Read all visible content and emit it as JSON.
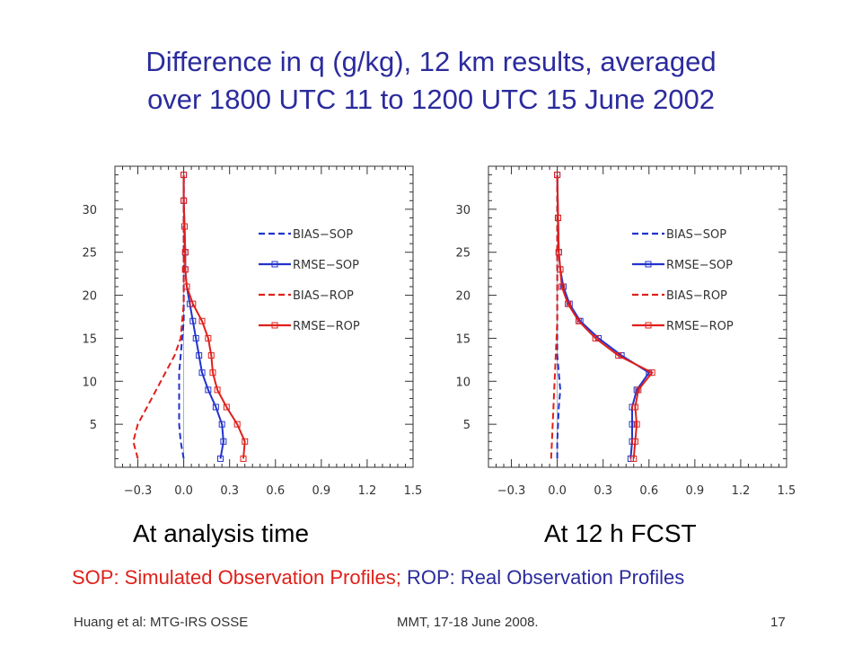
{
  "slide": {
    "title_line1": "Difference in q (g/kg), 12 km results, averaged",
    "title_line2": "over 1800 UTC 11 to 1200 UTC 15 June 2002",
    "caption_left": "At analysis time",
    "caption_right": "At 12 h FCST",
    "note_sop": "SOP: Simulated Observation Profiles;",
    "note_rop": "ROP: Real Observation Profiles",
    "footer_left": "Huang et al: MTG-IRS OSSE",
    "footer_center": "MMT, 17-18 June 2008.",
    "footer_right": "17",
    "colors": {
      "title": "#2b2b9e",
      "sop": "#2233cc",
      "rop": "#e0201a"
    }
  },
  "chart_data": [
    {
      "type": "line",
      "title": "At analysis time",
      "xlim": [
        -0.45,
        1.5
      ],
      "ylim": [
        0,
        35
      ],
      "xticks": [
        "−0.3",
        "0.0",
        "0.3",
        "0.6",
        "0.9",
        "1.2",
        "1.5"
      ],
      "xtick_values": [
        -0.3,
        0.0,
        0.3,
        0.6,
        0.9,
        1.2,
        1.5
      ],
      "yticks": [
        "5",
        "10",
        "15",
        "20",
        "25",
        "30"
      ],
      "ytick_values": [
        5,
        10,
        15,
        20,
        25,
        30
      ],
      "legend": "top-right",
      "series": [
        {
          "name": "BIAS−SOP",
          "color": "#2233cc",
          "style": "dashed",
          "marker": "none",
          "x": [
            0.0,
            -0.02,
            -0.03,
            -0.03,
            -0.03,
            -0.03,
            -0.02,
            -0.01,
            0.0,
            0.0,
            0.0,
            0.0,
            0.0,
            0.0,
            0.0,
            0.0
          ],
          "y": [
            1,
            3,
            5,
            7,
            9,
            11,
            13,
            15,
            17,
            19,
            21,
            23,
            25,
            28,
            31,
            34
          ]
        },
        {
          "name": "RMSE−SOP",
          "color": "#2233cc",
          "style": "solid",
          "marker": "square",
          "x": [
            0.24,
            0.26,
            0.25,
            0.21,
            0.16,
            0.12,
            0.1,
            0.08,
            0.06,
            0.04,
            0.02,
            0.01,
            0.01,
            0.005,
            0.0,
            0.0
          ],
          "y": [
            1,
            3,
            5,
            7,
            9,
            11,
            13,
            15,
            17,
            19,
            21,
            23,
            25,
            28,
            31,
            34
          ]
        },
        {
          "name": "BIAS−ROP",
          "color": "#e0201a",
          "style": "dashed",
          "marker": "none",
          "x": [
            -0.3,
            -0.33,
            -0.3,
            -0.24,
            -0.18,
            -0.12,
            -0.06,
            -0.02,
            -0.01,
            0.0,
            0.0,
            0.0,
            0.0,
            0.0,
            0.0,
            0.0
          ],
          "y": [
            1,
            3,
            5,
            7,
            9,
            11,
            13,
            15,
            17,
            19,
            21,
            23,
            25,
            28,
            31,
            34
          ]
        },
        {
          "name": "RMSE−ROP",
          "color": "#e0201a",
          "style": "solid",
          "marker": "square",
          "x": [
            0.39,
            0.4,
            0.35,
            0.28,
            0.22,
            0.19,
            0.18,
            0.16,
            0.12,
            0.06,
            0.02,
            0.01,
            0.01,
            0.005,
            0.0,
            0.0
          ],
          "y": [
            1,
            3,
            5,
            7,
            9,
            11,
            13,
            15,
            17,
            19,
            21,
            23,
            25,
            28,
            31,
            34
          ]
        }
      ]
    },
    {
      "type": "line",
      "title": "At 12 h FCST",
      "xlim": [
        -0.45,
        1.5
      ],
      "ylim": [
        0,
        35
      ],
      "xticks": [
        "−0.3",
        "0.0",
        "0.3",
        "0.6",
        "0.9",
        "1.2",
        "1.5"
      ],
      "xtick_values": [
        -0.3,
        0.0,
        0.3,
        0.6,
        0.9,
        1.2,
        1.5
      ],
      "yticks": [
        "5",
        "10",
        "15",
        "20",
        "25",
        "30"
      ],
      "ytick_values": [
        5,
        10,
        15,
        20,
        25,
        30
      ],
      "legend": "top-right",
      "series": [
        {
          "name": "BIAS−SOP",
          "color": "#2233cc",
          "style": "dashed",
          "marker": "none",
          "x": [
            0.0,
            0.0,
            0.005,
            0.01,
            0.02,
            0.01,
            0.0,
            0.0,
            0.0,
            0.0,
            0.0,
            0.0,
            0.0,
            0.0,
            0.0
          ],
          "y": [
            1,
            3,
            5,
            7,
            9,
            11,
            13,
            15,
            17,
            19,
            21,
            23,
            25,
            29,
            34
          ]
        },
        {
          "name": "RMSE−SOP",
          "color": "#2233cc",
          "style": "solid",
          "marker": "square",
          "x": [
            0.48,
            0.49,
            0.49,
            0.49,
            0.52,
            0.6,
            0.42,
            0.27,
            0.15,
            0.08,
            0.04,
            0.02,
            0.01,
            0.005,
            0.0
          ],
          "y": [
            1,
            3,
            5,
            7,
            9,
            11,
            13,
            15,
            17,
            19,
            21,
            23,
            25,
            29,
            34
          ]
        },
        {
          "name": "BIAS−ROP",
          "color": "#e0201a",
          "style": "dashed",
          "marker": "none",
          "x": [
            -0.04,
            -0.035,
            -0.03,
            -0.025,
            -0.02,
            -0.015,
            -0.01,
            -0.005,
            0.0,
            0.0,
            0.0,
            0.0,
            0.0,
            0.0,
            0.0
          ],
          "y": [
            1,
            3,
            5,
            7,
            9,
            11,
            13,
            15,
            17,
            19,
            21,
            23,
            25,
            29,
            34
          ]
        },
        {
          "name": "RMSE−ROP",
          "color": "#e0201a",
          "style": "solid",
          "marker": "square",
          "x": [
            0.5,
            0.51,
            0.52,
            0.51,
            0.53,
            0.62,
            0.4,
            0.25,
            0.14,
            0.07,
            0.03,
            0.02,
            0.01,
            0.005,
            0.0
          ],
          "y": [
            1,
            3,
            5,
            7,
            9,
            11,
            13,
            15,
            17,
            19,
            21,
            23,
            25,
            29,
            34
          ]
        }
      ]
    }
  ]
}
